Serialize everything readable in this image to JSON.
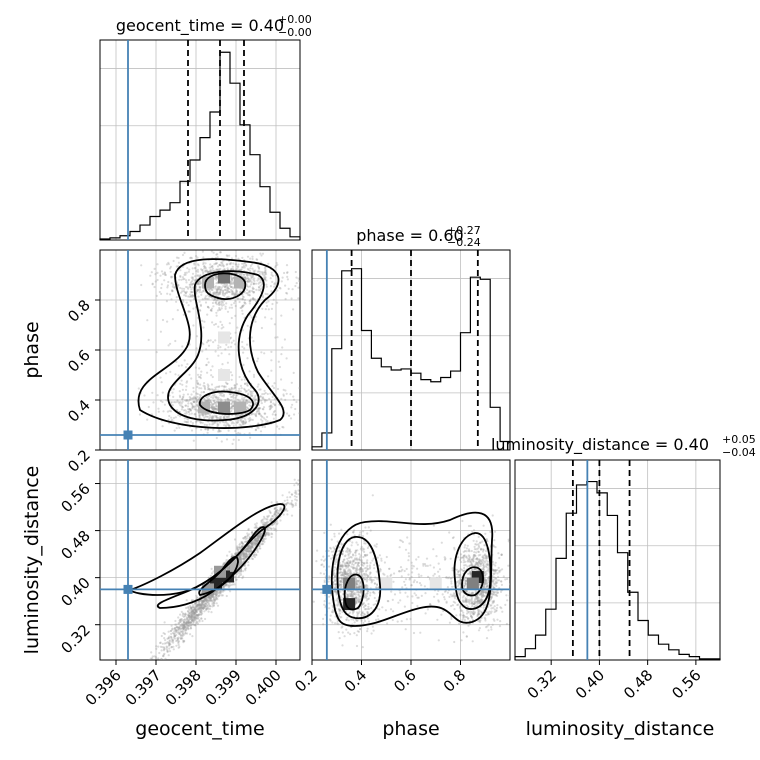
{
  "chart_data": {
    "type": "corner",
    "parameters": [
      "geocent_time",
      "phase",
      "luminosity_distance"
    ],
    "truths": {
      "geocent_time": 0.3963,
      "phase": 0.26,
      "luminosity_distance": 0.38
    },
    "titles": [
      {
        "param": "geocent_time",
        "median": "0.40",
        "plus": "+0.00",
        "minus": "−0.00"
      },
      {
        "param": "phase",
        "median": "0.60",
        "plus": "+0.27",
        "minus": "−0.24"
      },
      {
        "param": "luminosity_distance",
        "median": "0.40",
        "plus": "+0.05",
        "minus": "−0.04"
      }
    ],
    "axes": {
      "geocent_time": {
        "range": [
          0.3956,
          0.4006
        ],
        "ticks": [
          0.396,
          0.397,
          0.398,
          0.399,
          0.4
        ],
        "tick_labels": [
          "0.396",
          "0.397",
          "0.398",
          "0.399",
          "0.400"
        ],
        "label": "geocent_time"
      },
      "phase": {
        "range": [
          0.2,
          1.0
        ],
        "ticks": [
          0.2,
          0.4,
          0.6,
          0.8
        ],
        "tick_labels": [
          "0.2",
          "0.4",
          "0.6",
          "0.8"
        ],
        "label": "phase"
      },
      "luminosity_distance": {
        "range": [
          0.26,
          0.6
        ],
        "ticks": [
          0.32,
          0.4,
          0.48,
          0.56
        ],
        "tick_labels": [
          "0.32",
          "0.40",
          "0.48",
          "0.56"
        ],
        "label": "luminosity_distance"
      }
    },
    "quantiles": {
      "geocent_time": [
        0.3978,
        0.3986,
        0.3992
      ],
      "phase": [
        0.36,
        0.6,
        0.87
      ],
      "luminosity_distance": [
        0.356,
        0.4,
        0.45
      ]
    },
    "histograms": {
      "geocent_time": {
        "edges": [
          0.3956,
          0.39585,
          0.3961,
          0.39635,
          0.3966,
          0.39685,
          0.3971,
          0.39735,
          0.3976,
          0.39785,
          0.3981,
          0.39835,
          0.3986,
          0.39885,
          0.3991,
          0.39935,
          0.3996,
          0.39985,
          0.4001,
          0.40035,
          0.4006
        ],
        "counts": [
          1,
          2,
          4,
          8,
          14,
          22,
          28,
          35,
          55,
          75,
          96,
          120,
          176,
          147,
          108,
          80,
          50,
          26,
          11,
          3
        ]
      },
      "phase": {
        "edges": [
          0.2,
          0.24,
          0.28,
          0.32,
          0.36,
          0.4,
          0.44,
          0.48,
          0.52,
          0.56,
          0.6,
          0.64,
          0.68,
          0.72,
          0.76,
          0.8,
          0.84,
          0.88,
          0.92,
          0.96,
          1.0
        ],
        "counts": [
          3,
          16,
          95,
          168,
          170,
          112,
          86,
          78,
          75,
          76,
          72,
          66,
          64,
          68,
          74,
          110,
          162,
          160,
          40,
          8
        ]
      },
      "luminosity_distance": {
        "edges": [
          0.26,
          0.277,
          0.294,
          0.311,
          0.328,
          0.345,
          0.362,
          0.379,
          0.396,
          0.413,
          0.43,
          0.447,
          0.464,
          0.481,
          0.498,
          0.515,
          0.532,
          0.549,
          0.566,
          0.583,
          0.6
        ],
        "counts": [
          3,
          10,
          22,
          45,
          90,
          130,
          155,
          158,
          148,
          128,
          95,
          60,
          35,
          22,
          14,
          9,
          5,
          3,
          1,
          1
        ]
      }
    },
    "hist_ymax": {
      "geocent_time": 180,
      "phase": 180,
      "luminosity_distance": 170
    },
    "scatter_2d": [
      {
        "x": "geocent_time",
        "y": "phase",
        "density_cells": [
          {
            "x": 0.3987,
            "y": 0.89,
            "level": 0.55
          },
          {
            "x": 0.3983,
            "y": 0.87,
            "level": 0.3
          },
          {
            "x": 0.3991,
            "y": 0.87,
            "level": 0.3
          },
          {
            "x": 0.3987,
            "y": 0.37,
            "level": 0.45
          },
          {
            "x": 0.3982,
            "y": 0.37,
            "level": 0.3
          },
          {
            "x": 0.3991,
            "y": 0.37,
            "level": 0.3
          },
          {
            "x": 0.3987,
            "y": 0.5,
            "level": 0.1
          },
          {
            "x": 0.3987,
            "y": 0.65,
            "level": 0.1
          }
        ]
      },
      {
        "x": "geocent_time",
        "y": "luminosity_distance",
        "density_cells": [
          {
            "x": 0.3988,
            "y": 0.402,
            "level": 0.85
          },
          {
            "x": 0.3985,
            "y": 0.39,
            "level": 0.85
          },
          {
            "x": 0.3983,
            "y": 0.38,
            "level": 0.4
          },
          {
            "x": 0.3986,
            "y": 0.41,
            "level": 0.4
          },
          {
            "x": 0.399,
            "y": 0.42,
            "level": 0.3
          }
        ]
      },
      {
        "x": "phase",
        "y": "luminosity_distance",
        "density_cells": [
          {
            "x": 0.35,
            "y": 0.355,
            "level": 0.85
          },
          {
            "x": 0.35,
            "y": 0.39,
            "level": 0.5
          },
          {
            "x": 0.87,
            "y": 0.401,
            "level": 0.85
          },
          {
            "x": 0.85,
            "y": 0.39,
            "level": 0.5
          },
          {
            "x": 0.5,
            "y": 0.39,
            "level": 0.1
          },
          {
            "x": 0.7,
            "y": 0.39,
            "level": 0.1
          }
        ]
      }
    ],
    "colors": {
      "truth": "#4682b4",
      "hist": "#000000",
      "grid": "#c0c0c0"
    }
  }
}
